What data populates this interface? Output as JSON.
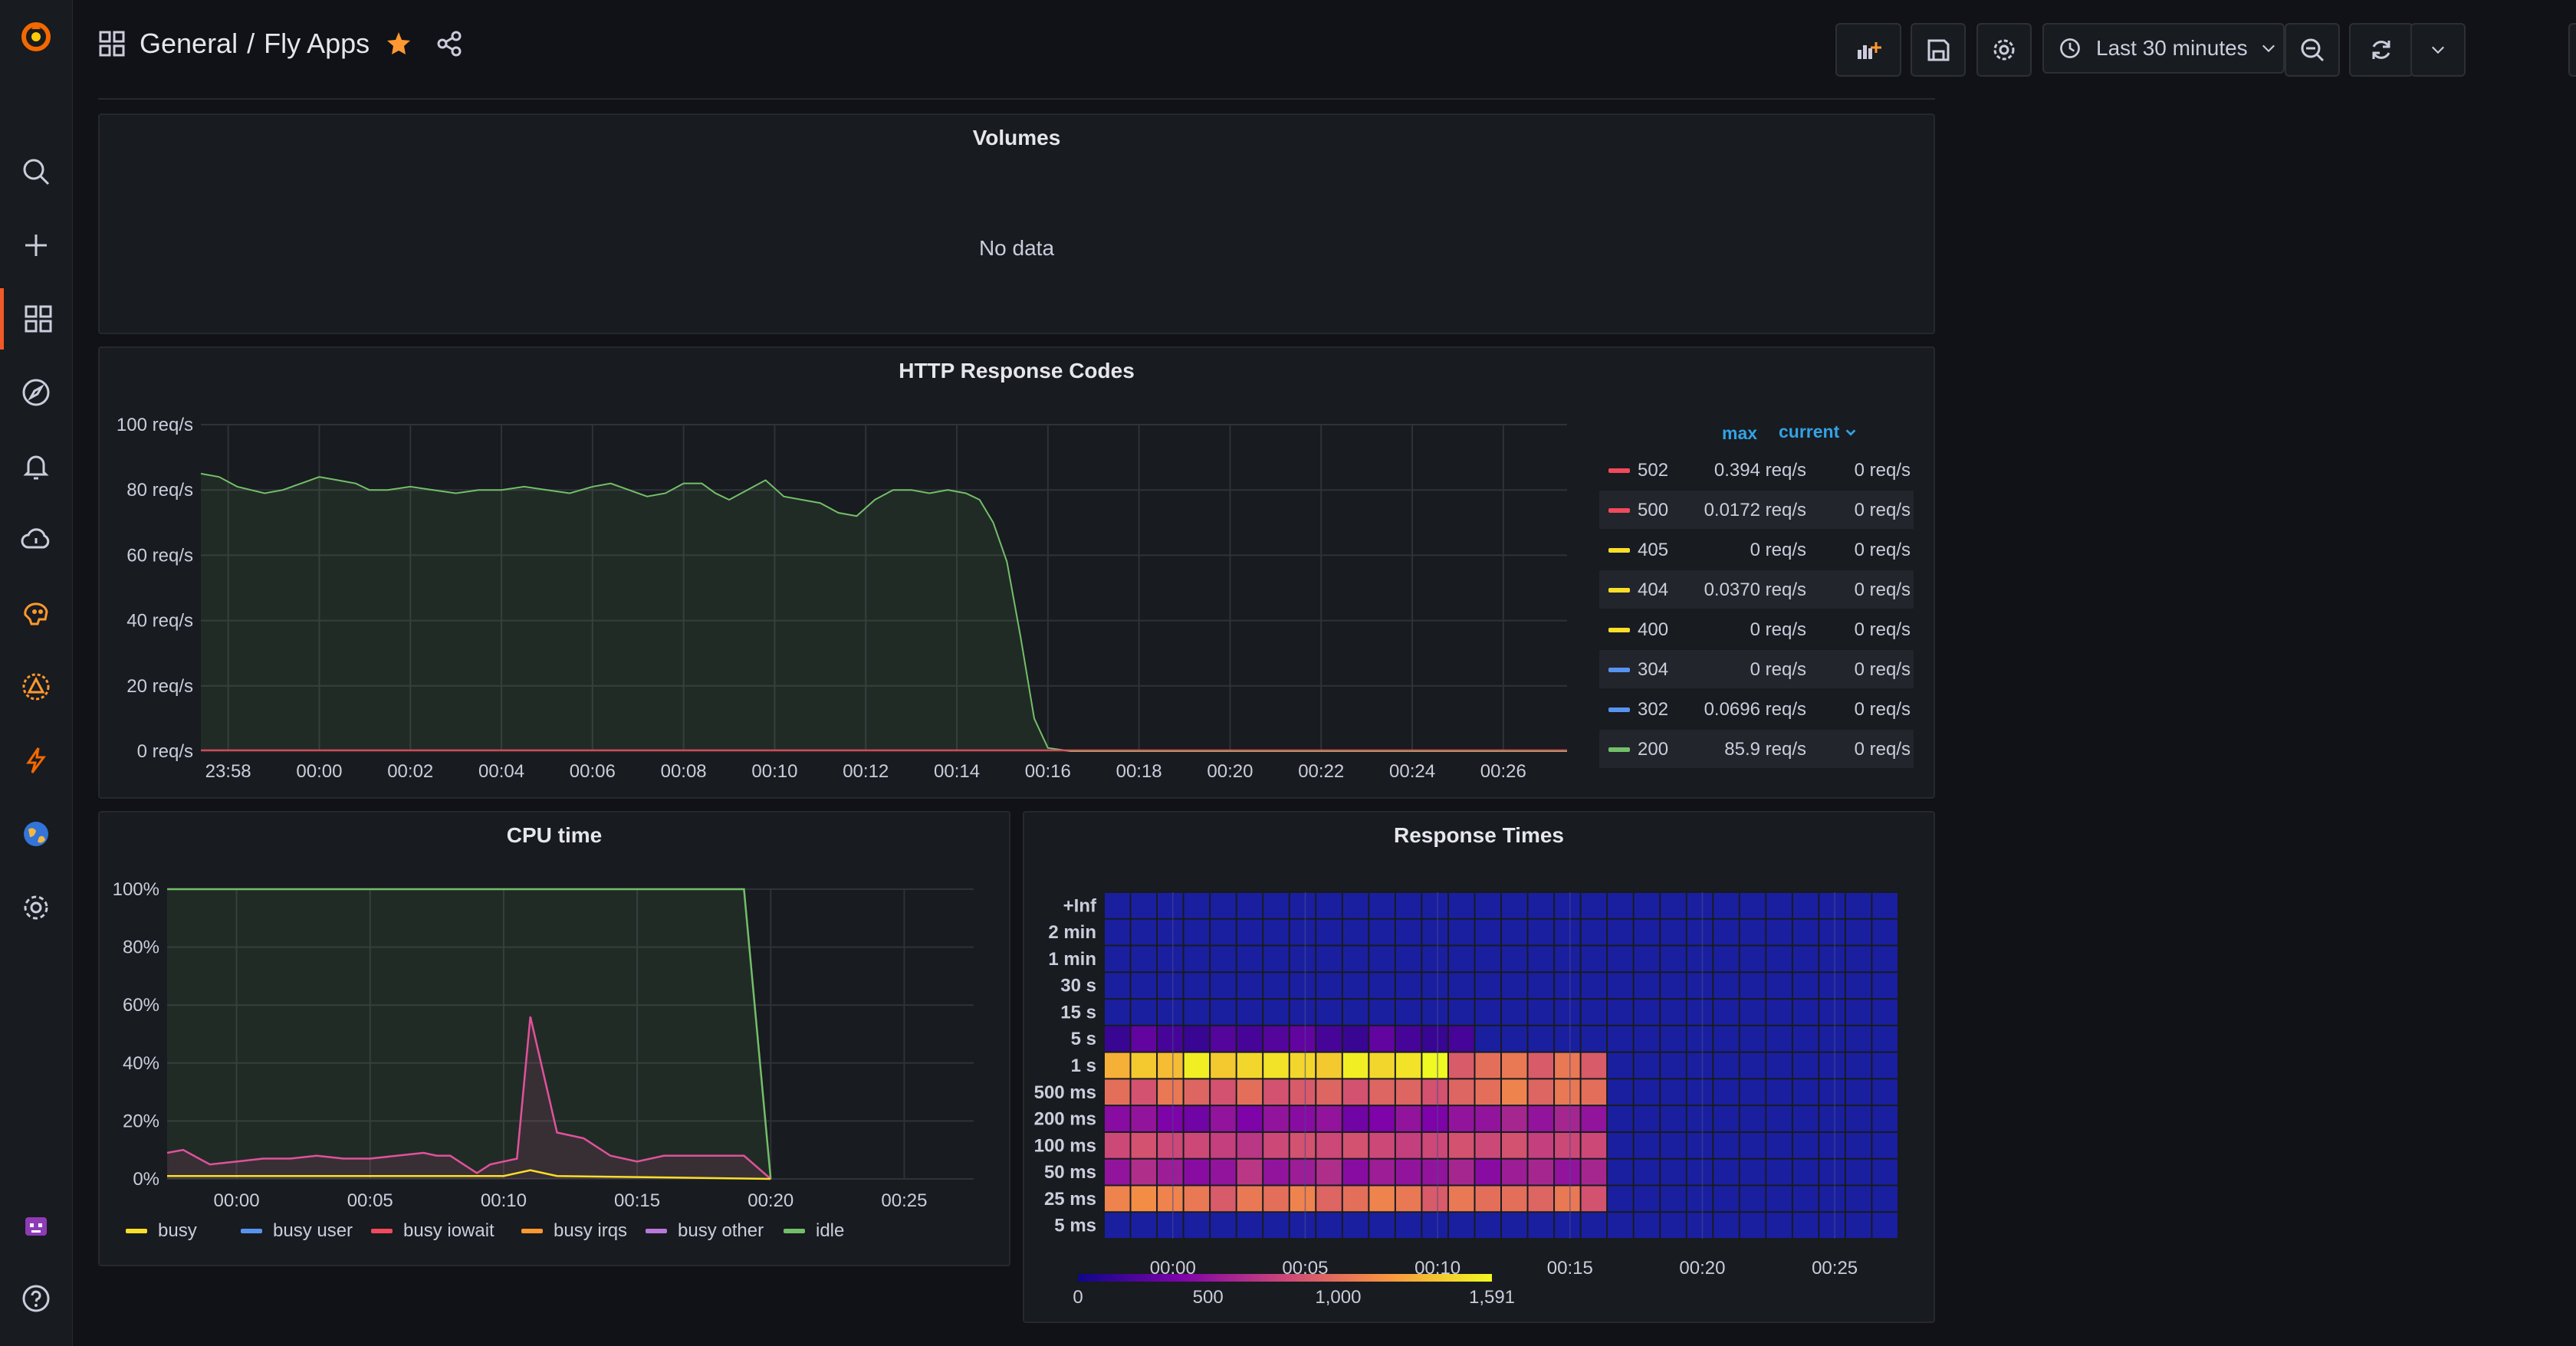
{
  "breadcrumb": {
    "folder": "General",
    "separator": "/",
    "dashboard": "Fly Apps"
  },
  "toolbar": {
    "time_range": "Last 30 minutes"
  },
  "colors": {
    "accent": "#f05a28",
    "star": "#ff9830",
    "green": "#73bf69",
    "red": "#f2495c",
    "yellow": "#fade2a",
    "blue": "#5794f2",
    "orange": "#ff9830",
    "purple": "#b877d9",
    "pink": "#e0529c"
  },
  "icons": {
    "sidebar": [
      "grafana-logo-icon",
      "search-icon",
      "plus-icon",
      "dashboards-icon",
      "explore-icon",
      "alerting-icon",
      "cloud-icon",
      "brain-icon",
      "incident-icon",
      "lightning-icon",
      "globe-icon",
      "gear-icon",
      "user-avatar-icon",
      "help-icon"
    ]
  },
  "panels": {
    "volumes": {
      "title": "Volumes",
      "empty": "No data"
    },
    "http": {
      "title": "HTTP Response Codes",
      "legend_max": "max",
      "legend_current": "current"
    },
    "cpu": {
      "title": "CPU time"
    },
    "resp": {
      "title": "Response Times"
    }
  },
  "http_legend": [
    {
      "code": "502",
      "max": "0.394 req/s",
      "current": "0 req/s",
      "color": "#f2495c"
    },
    {
      "code": "500",
      "max": "0.0172 req/s",
      "current": "0 req/s",
      "color": "#f2495c"
    },
    {
      "code": "405",
      "max": "0 req/s",
      "current": "0 req/s",
      "color": "#fade2a"
    },
    {
      "code": "404",
      "max": "0.0370 req/s",
      "current": "0 req/s",
      "color": "#fade2a"
    },
    {
      "code": "400",
      "max": "0 req/s",
      "current": "0 req/s",
      "color": "#fade2a"
    },
    {
      "code": "304",
      "max": "0 req/s",
      "current": "0 req/s",
      "color": "#5794f2"
    },
    {
      "code": "302",
      "max": "0.0696 req/s",
      "current": "0 req/s",
      "color": "#5794f2"
    },
    {
      "code": "200",
      "max": "85.9 req/s",
      "current": "0 req/s",
      "color": "#73bf69"
    }
  ],
  "cpu_legend": [
    {
      "name": "busy",
      "color": "#fade2a"
    },
    {
      "name": "busy user",
      "color": "#5794f2"
    },
    {
      "name": "busy iowait",
      "color": "#f2495c"
    },
    {
      "name": "busy irqs",
      "color": "#ff9830"
    },
    {
      "name": "busy other",
      "color": "#b877d9"
    },
    {
      "name": "idle",
      "color": "#73bf69"
    }
  ],
  "chart_data": [
    {
      "type": "area",
      "title": "HTTP Response Codes",
      "y_ticks": [
        "0 req/s",
        "20 req/s",
        "40 req/s",
        "60 req/s",
        "80 req/s",
        "100 req/s"
      ],
      "ylim": [
        0,
        100
      ],
      "x_ticks": [
        "23:58",
        "00:00",
        "00:02",
        "00:04",
        "00:06",
        "00:08",
        "00:10",
        "00:12",
        "00:14",
        "00:16",
        "00:18",
        "00:20",
        "00:22",
        "00:24",
        "00:26"
      ],
      "x_range_minutes": [
        -2.6,
        27.4
      ],
      "series": [
        {
          "name": "200",
          "x": [
            -2.6,
            -2.2,
            -1.8,
            -1.5,
            -1.2,
            -0.8,
            -0.4,
            0,
            0.4,
            0.8,
            1.1,
            1.5,
            2,
            2.5,
            3,
            3.5,
            4,
            4.5,
            5,
            5.5,
            6,
            6.4,
            6.8,
            7.2,
            7.6,
            8,
            8.4,
            8.7,
            9,
            9.4,
            9.8,
            10.2,
            10.6,
            11,
            11.4,
            11.8,
            12.2,
            12.6,
            13,
            13.4,
            13.8,
            14.2,
            14.5,
            14.8,
            15.1,
            15.4,
            15.7,
            16,
            16.5,
            20,
            27.4
          ],
          "y": [
            85,
            84,
            81,
            80,
            79,
            80,
            82,
            84,
            83,
            82,
            80,
            80,
            81,
            80,
            79,
            80,
            80,
            81,
            80,
            79,
            81,
            82,
            80,
            78,
            79,
            82,
            82,
            79,
            77,
            80,
            83,
            78,
            77,
            76,
            73,
            72,
            77,
            80,
            80,
            79,
            80,
            79,
            77,
            70,
            58,
            35,
            10,
            1,
            0,
            0,
            0
          ]
        },
        {
          "name": "502",
          "x": [
            -2.6,
            27.4
          ],
          "y": [
            0.3,
            0.3
          ]
        }
      ]
    },
    {
      "type": "area",
      "title": "CPU time",
      "y_ticks": [
        "0%",
        "20%",
        "40%",
        "60%",
        "80%",
        "100%"
      ],
      "ylim": [
        0,
        100
      ],
      "x_ticks": [
        "00:00",
        "00:05",
        "00:10",
        "00:15",
        "00:20",
        "00:25"
      ],
      "x_range_minutes": [
        -2.6,
        27.6
      ],
      "series": [
        {
          "name": "idle",
          "x": [
            -2.6,
            -1.5,
            -1.5,
            3,
            3,
            8.9,
            8.9,
            19,
            20
          ],
          "y": [
            100,
            100,
            100,
            100,
            100,
            100,
            100,
            100,
            0
          ]
        },
        {
          "name": "busy other",
          "x": [
            -2.6,
            -2,
            -1,
            0,
            1,
            2,
            3,
            4,
            5,
            6,
            7,
            7.5,
            8,
            9,
            9.5,
            10,
            10.5,
            11,
            12,
            13,
            14,
            15,
            16,
            17,
            18,
            19,
            20
          ],
          "y": [
            9,
            10,
            5,
            6,
            7,
            7,
            8,
            7,
            7,
            8,
            9,
            8,
            8,
            2,
            5,
            6,
            7,
            56,
            16,
            14,
            8,
            6,
            8,
            8,
            8,
            8,
            0
          ]
        },
        {
          "name": "busy",
          "x": [
            -2.6,
            10,
            10.5,
            11,
            12,
            20
          ],
          "y": [
            1,
            1,
            2,
            3,
            1,
            0
          ]
        }
      ]
    },
    {
      "type": "heatmap",
      "title": "Response Times",
      "y_labels": [
        "5 ms",
        "25 ms",
        "50 ms",
        "100 ms",
        "200 ms",
        "500 ms",
        "1 s",
        "5 s",
        "15 s",
        "30 s",
        "1 min",
        "2 min",
        "+Inf"
      ],
      "x_ticks": [
        "00:00",
        "00:05",
        "00:10",
        "00:15",
        "00:20",
        "00:25"
      ],
      "colorbar_ticks": [
        "0",
        "500",
        "1,000",
        "1,591"
      ],
      "zlim": [
        0,
        1591
      ],
      "columns": 30,
      "active_columns": 19,
      "values_by_row": {
        "5 ms": [
          0,
          0,
          0,
          0,
          0,
          0,
          0,
          0,
          0,
          0,
          0,
          0,
          0,
          0,
          0,
          0,
          0,
          0,
          0
        ],
        "25 ms": [
          1100,
          1150,
          1100,
          1050,
          900,
          1050,
          1000,
          1100,
          950,
          1000,
          1100,
          1050,
          900,
          1050,
          1000,
          1000,
          950,
          1050,
          850
        ],
        "50 ms": [
          500,
          650,
          550,
          450,
          500,
          700,
          500,
          550,
          650,
          450,
          550,
          500,
          500,
          600,
          450,
          550,
          600,
          500,
          600
        ],
        "100 ms": [
          800,
          850,
          800,
          800,
          750,
          700,
          800,
          850,
          800,
          850,
          800,
          750,
          800,
          850,
          800,
          850,
          750,
          800,
          800
        ],
        "200 ms": [
          450,
          500,
          400,
          350,
          500,
          400,
          500,
          450,
          500,
          350,
          400,
          500,
          400,
          500,
          500,
          600,
          500,
          600,
          500
        ],
        "500 ms": [
          1000,
          850,
          1050,
          950,
          850,
          1000,
          850,
          900,
          950,
          850,
          950,
          950,
          850,
          950,
          1000,
          1100,
          950,
          1050,
          1000
        ],
        "1 s": [
          1300,
          1400,
          1350,
          1550,
          1400,
          1450,
          1500,
          1450,
          1400,
          1550,
          1450,
          1500,
          1591,
          900,
          1000,
          1050,
          900,
          1050,
          900
        ],
        "5 s": [
          150,
          300,
          200,
          150,
          250,
          200,
          250,
          300,
          200,
          150,
          300,
          200,
          150,
          200,
          0,
          0,
          0,
          0,
          0
        ]
      }
    }
  ]
}
